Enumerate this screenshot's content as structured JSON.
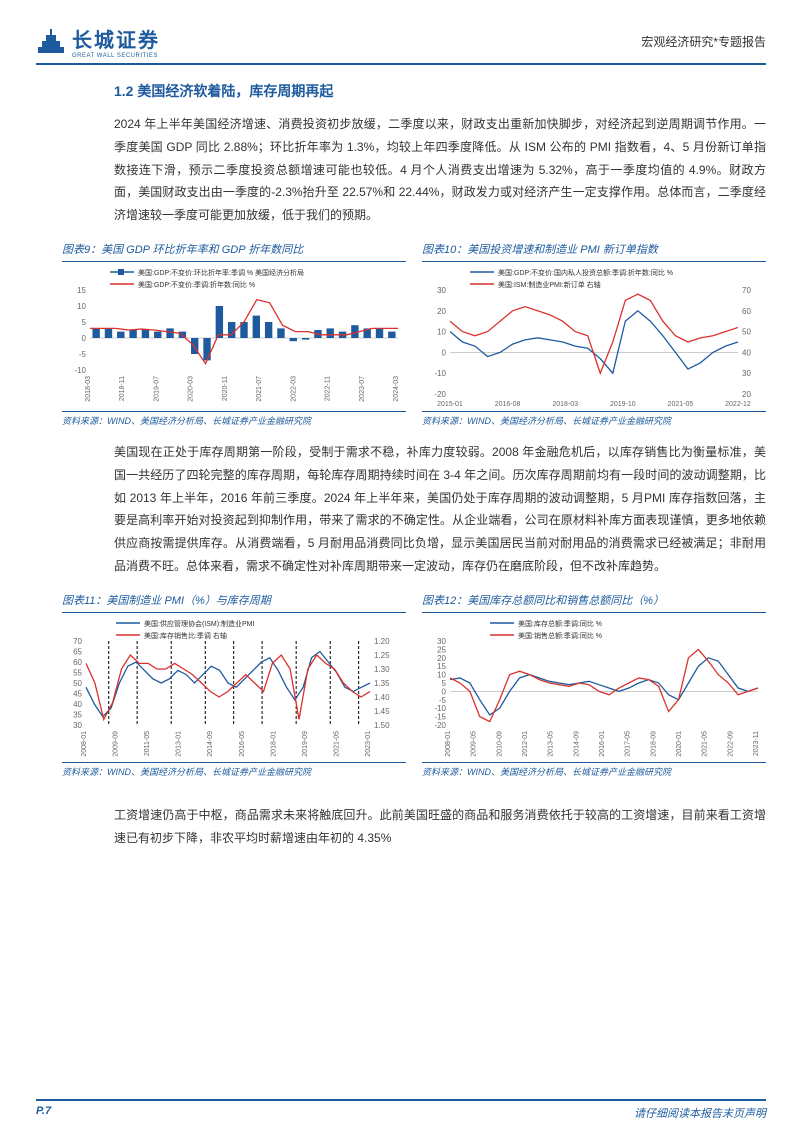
{
  "header": {
    "logo_cn": "长城证券",
    "logo_en": "GREAT WALL SECURITIES",
    "right": "宏观经济研究*专题报告"
  },
  "section_title": "1.2 美国经济软着陆，库存周期再起",
  "para1": "2024 年上半年美国经济增速、消费投资初步放缓，二季度以来，财政支出重新加快脚步，对经济起到逆周期调节作用。一季度美国 GDP 同比 2.88%；环比折年率为 1.3%，均较上年四季度降低。从 ISM 公布的 PMI 指数看，4、5 月份新订单指数接连下滑，预示二季度投资总额增速可能也较低。4 月个人消费支出增速为 5.32%，高于一季度均值的 4.9%。财政方面，美国财政支出由一季度的-2.3%抬升至 22.57%和 22.44%，财政发力或对经济产生一定支撑作用。总体而言，二季度经济增速较一季度可能更加放缓，低于我们的预期。",
  "chart9": {
    "title": "图表9：美国 GDP 环比折年率和 GDP 折年数同比",
    "legend1": "美国:GDP:不变价:环比折年率:季调 % 美国经济分析局",
    "legend2": "美国:GDP:不变价:季调:折年数:同比 %",
    "color1": "#1e5b9e",
    "color2": "#d9322e",
    "ylim": [
      -10,
      15
    ],
    "yticks": [
      -10,
      -5,
      0,
      5,
      10,
      15
    ],
    "xlabels": [
      "2018-03",
      "2018-11",
      "2019-07",
      "2020-03",
      "2020-11",
      "2021-07",
      "2022-03",
      "2022-11",
      "2023-07",
      "2024-03"
    ],
    "bars": [
      3,
      3,
      2,
      2.5,
      2.8,
      2,
      3,
      2,
      -5,
      -7,
      10,
      5,
      5,
      7,
      5,
      3,
      -1,
      -0.5,
      2.5,
      3,
      2,
      4,
      3,
      3,
      2
    ],
    "line": [
      3,
      3,
      3,
      2.5,
      2.8,
      2.5,
      2,
      1.5,
      -2,
      -8,
      1,
      1,
      5,
      12,
      11,
      4,
      2,
      2,
      1,
      1,
      1,
      2,
      3,
      3,
      3
    ]
  },
  "chart10": {
    "title": "图表10：美国投资增速和制造业 PMI 新订单指数",
    "legend1": "美国:GDP:不变价:国内私人投资总额:季调:折年数:同比 %",
    "legend2": "美国:ISM:制造业PMI:新订单 右轴",
    "color1": "#1e5b9e",
    "color2": "#d9322e",
    "ylim_left": [
      -20,
      30
    ],
    "yticks_left": [
      -20,
      -10,
      0,
      10,
      20,
      30
    ],
    "ylim_right": [
      20,
      70
    ],
    "yticks_right": [
      20,
      30,
      40,
      50,
      60,
      70
    ],
    "xlabels": [
      "2015-01",
      "2016-08",
      "2018-03",
      "2019-10",
      "2021-05",
      "2022-12"
    ],
    "line1": [
      10,
      5,
      3,
      -2,
      0,
      4,
      6,
      7,
      6,
      5,
      3,
      2,
      -3,
      -10,
      15,
      20,
      15,
      8,
      0,
      -8,
      -5,
      0,
      3,
      5
    ],
    "line2": [
      55,
      50,
      48,
      50,
      55,
      60,
      62,
      60,
      58,
      55,
      50,
      48,
      30,
      45,
      65,
      68,
      65,
      55,
      48,
      45,
      47,
      48,
      50,
      52
    ]
  },
  "para2": "美国现在正处于库存周期第一阶段，受制于需求不稳，补库力度较弱。2008 年金融危机后，以库存销售比为衡量标准，美国一共经历了四轮完整的库存周期，每轮库存周期持续时间在 3-4 年之间。历次库存周期前均有一段时间的波动调整期，比如 2013 年上半年，2016 年前三季度。2024 年上半年来，美国仍处于库存周期的波动调整期，5 月PMI 库存指数回落，主要是高利率开始对投资起到抑制作用，带来了需求的不确定性。从企业端看，公司在原材料补库方面表现谨慎，更多地依赖供应商按需提供库存。从消费端看，5 月耐用品消费同比负增，显示美国居民当前对耐用品的消费需求已经被满足；非耐用品消费不旺。总体来看，需求不确定性对补库周期带来一定波动，库存仍在磨底阶段，但不改补库趋势。",
  "chart11": {
    "title": "图表11：美国制造业 PMI（%）与库存周期",
    "legend1": "美国:供应管理协会(ISM):制造业PMI",
    "legend2": "美国:库存销售比:季调 右轴",
    "color1": "#1e5b9e",
    "color2": "#d9322e",
    "ylim_left": [
      30,
      70
    ],
    "yticks_left": [
      30,
      35,
      40,
      45,
      50,
      55,
      60,
      65,
      70
    ],
    "ylim_right_inverted": [
      1.2,
      1.5
    ],
    "yticks_right": [
      1.2,
      1.25,
      1.3,
      1.35,
      1.4,
      1.45,
      1.5
    ],
    "xlabels": [
      "2008-01",
      "2009-09",
      "2011-05",
      "2013-01",
      "2014-09",
      "2016-05",
      "2018-01",
      "2019-09",
      "2021-05",
      "2023-01"
    ],
    "line1": [
      48,
      40,
      34,
      38,
      50,
      58,
      60,
      56,
      52,
      50,
      52,
      56,
      54,
      50,
      54,
      58,
      56,
      50,
      48,
      52,
      56,
      60,
      62,
      56,
      48,
      42,
      48,
      62,
      65,
      60,
      55,
      48,
      46,
      48,
      50
    ],
    "line2": [
      1.28,
      1.35,
      1.48,
      1.42,
      1.3,
      1.25,
      1.28,
      1.28,
      1.3,
      1.3,
      1.28,
      1.3,
      1.32,
      1.35,
      1.38,
      1.4,
      1.38,
      1.35,
      1.32,
      1.35,
      1.38,
      1.28,
      1.25,
      1.3,
      1.48,
      1.3,
      1.25,
      1.28,
      1.3,
      1.35,
      1.38,
      1.4,
      1.38
    ],
    "vlines": [
      0.08,
      0.18,
      0.3,
      0.42,
      0.52,
      0.62,
      0.74,
      0.86,
      0.96
    ]
  },
  "chart12": {
    "title": "图表12：美国库存总额同比和销售总额同比（%）",
    "legend1": "美国:库存总额:季调:同比 %",
    "legend2": "美国:销售总额:季调:同比 %",
    "color1": "#1e5b9e",
    "color2": "#d9322e",
    "ylim": [
      -20,
      30
    ],
    "yticks": [
      -20,
      -15,
      -10,
      -5,
      0,
      5,
      10,
      15,
      20,
      25,
      30
    ],
    "xlabels": [
      "2008-01",
      "2009-05",
      "2010-09",
      "2012-01",
      "2013-05",
      "2014-09",
      "2016-01",
      "2017-05",
      "2018-09",
      "2020-01",
      "2021-05",
      "2022-09",
      "2023-11"
    ],
    "line1": [
      7,
      8,
      5,
      -5,
      -14,
      -10,
      0,
      8,
      10,
      8,
      6,
      5,
      4,
      5,
      6,
      4,
      2,
      0,
      2,
      5,
      7,
      5,
      -2,
      -5,
      5,
      15,
      20,
      18,
      10,
      2,
      0,
      2
    ],
    "line2": [
      8,
      5,
      0,
      -15,
      -18,
      -5,
      10,
      12,
      10,
      7,
      5,
      4,
      3,
      5,
      4,
      0,
      -2,
      2,
      5,
      8,
      7,
      3,
      -12,
      -5,
      20,
      25,
      18,
      10,
      5,
      -2,
      0,
      2
    ]
  },
  "source_text": "资料来源：WIND、美国经济分析局、长城证券产业金融研究院",
  "para3": "工资增速仍高于中枢，商品需求未来将触底回升。此前美国旺盛的商品和服务消费依托于较高的工资增速，目前来看工资增速已有初步下降，非农平均时薪增速由年初的 4.35%",
  "footer": {
    "page": "P.7",
    "text": "请仔细阅读本报告末页声明"
  }
}
